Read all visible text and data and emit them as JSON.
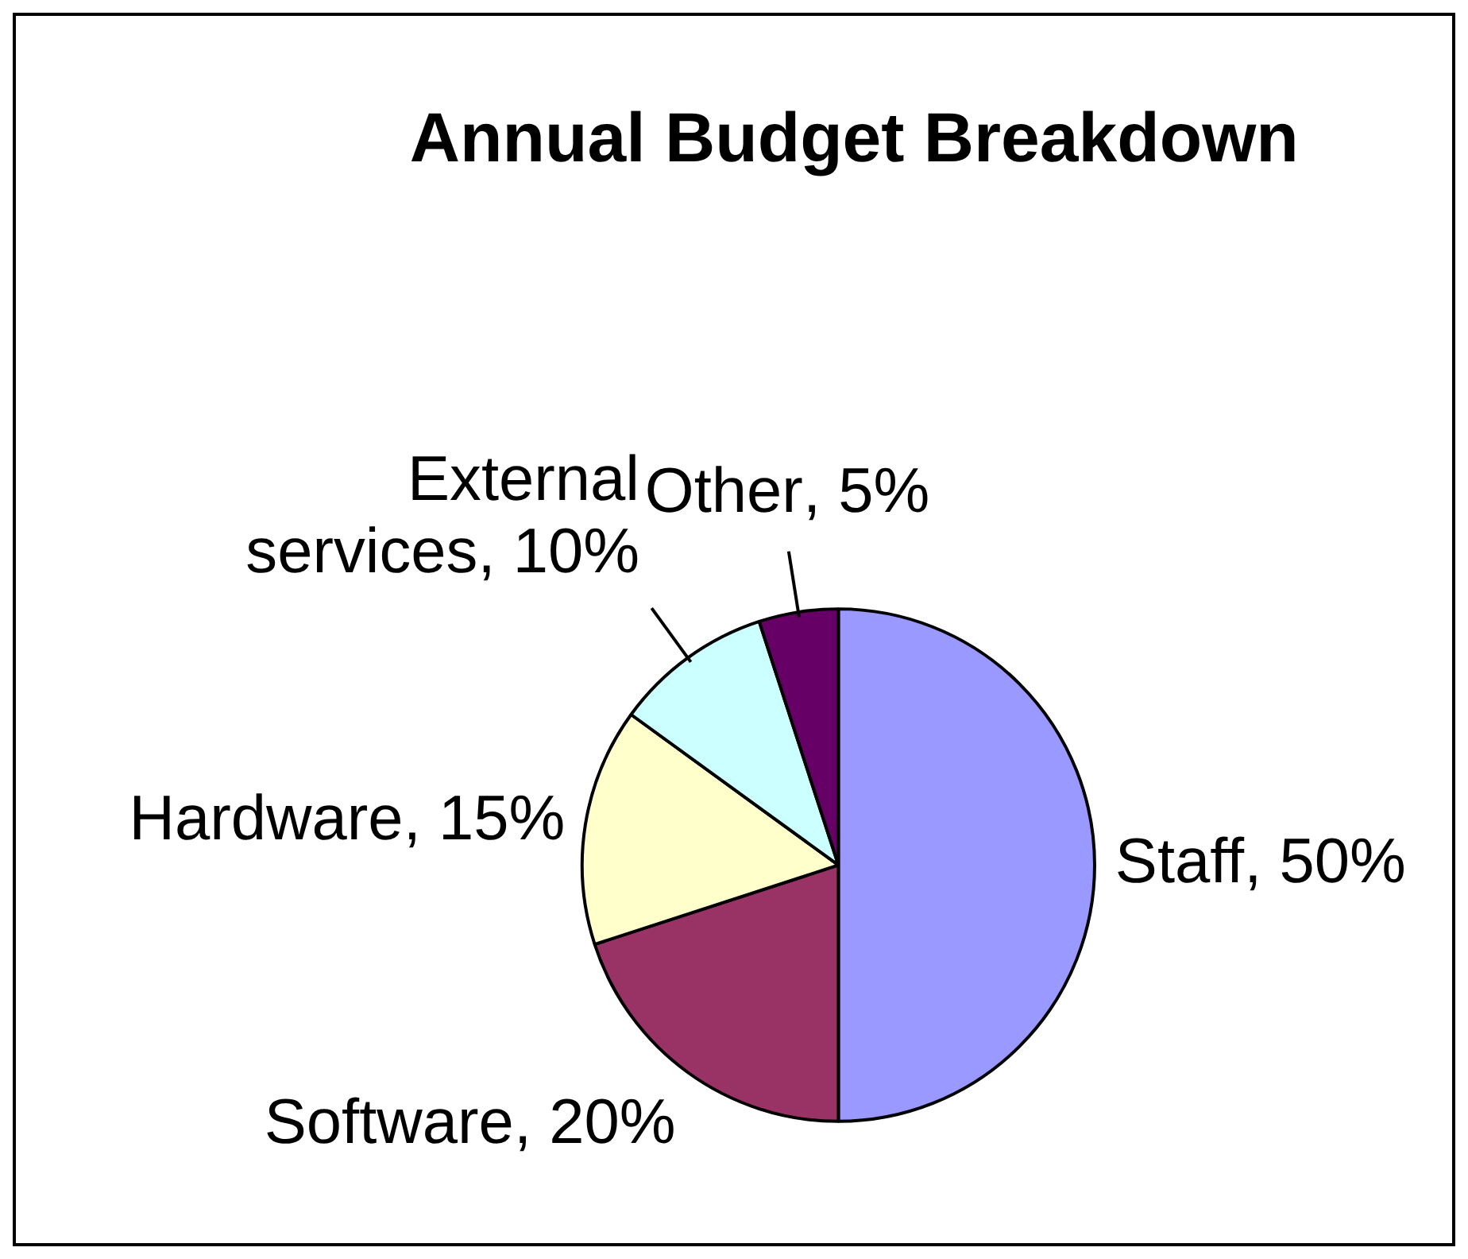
{
  "chart_data": {
    "type": "pie",
    "title": "Annual Budget Breakdown",
    "categories": [
      "Staff",
      "Software",
      "Hardware",
      "External services",
      "Other"
    ],
    "values": [
      50,
      20,
      15,
      10,
      5
    ],
    "colors": [
      "#9999ff",
      "#993366",
      "#ffffcc",
      "#ccffff",
      "#660066"
    ],
    "value_labels": [
      ", 50%",
      ", 20%",
      ", 15%",
      ", 10%",
      ", 5%"
    ]
  }
}
